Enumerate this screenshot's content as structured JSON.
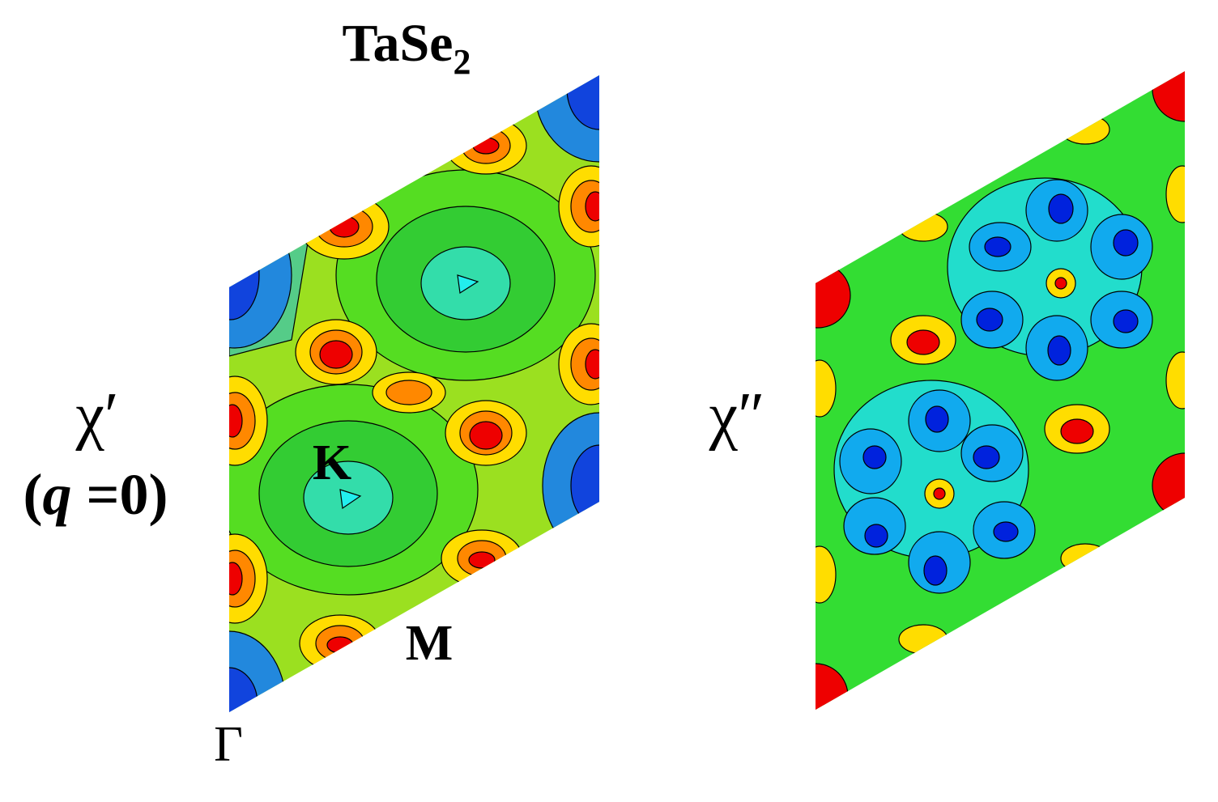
{
  "title": {
    "base": "TaSe",
    "subscript": "2"
  },
  "left_panel": {
    "symbol": "χ′",
    "condition": [
      "(",
      "q",
      " =0)"
    ],
    "points": {
      "K": "K",
      "M": "M",
      "Gamma": "Γ"
    }
  },
  "right_panel": {
    "symbol": "χ″"
  }
}
